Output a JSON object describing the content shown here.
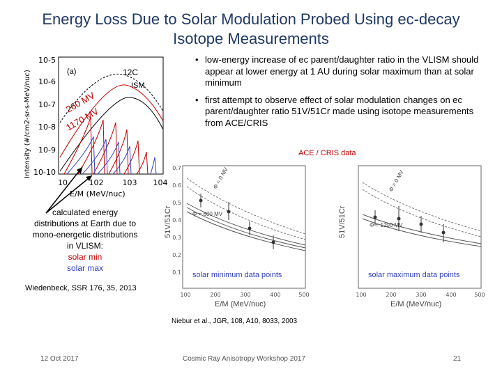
{
  "slide": {
    "title": "Energy Loss Due to Solar Modulation Probed Using ec-decay Isotope Measurements",
    "bullets": [
      "low-energy increase of ec parent/daughter ratio in the VLISM should appear at lower energy at 1 AU during solar maximum than at solar minimum",
      "first attempt to observe effect of solar modulation changes on ec parent/daughter ratio 51V/51Cr made using isotope measurements from ACE/CRIS"
    ],
    "cris_label": "ACE / CRIS data",
    "caption_lines": [
      "calculated energy",
      "distributions at Earth due to",
      "mono-energetic distributions",
      "in VLISM:"
    ],
    "caption_min": "solar min",
    "caption_max": "solar max",
    "ref_left": "Wiedenbeck, SSR 176, 35, 2013",
    "ref_bottom": "Niebur et al., JGR, 108, A10, 8033, 2003",
    "footer_date": "12 Oct 2017",
    "footer_center": "Cosmic Ray Anisotropy Workshop 2017",
    "footer_page": "21"
  },
  "left_plot": {
    "panel_label": "(a)",
    "isotope": "12C",
    "ism_label": "ISM",
    "phi_min": "260 MV",
    "phi_max": "1170 MV",
    "ylabel": "Intensity (#/cm2-sr-s-MeV/nuc)",
    "xlabel": "E/M (MeV/nuc)",
    "yticks": [
      "10-5",
      "10-6",
      "10-7",
      "10-8",
      "10-9",
      "10-10"
    ],
    "xticks": [
      "10",
      "102",
      "103",
      "104"
    ]
  },
  "right_plots": {
    "ylabel": "51V/51Cr",
    "xlabel": "E/M (MeV/nuc)",
    "yticks": [
      "0.7",
      "0.6",
      "0.5",
      "0.4",
      "0.3",
      "0.2",
      "0.1"
    ],
    "xticks": [
      "100",
      "200",
      "300",
      "400",
      "500"
    ],
    "min_curve_labels": [
      "Φ = 0 MV",
      "Φ = 600 MV"
    ],
    "max_curve_labels": [
      "Φ = 0 MV",
      "Φ = 1200 MV"
    ],
    "min_points_label": "solar minimum data points",
    "max_points_label": "solar maximum data points"
  },
  "colors": {
    "title": "#1f3864",
    "red": "#c00000",
    "blue": "#2f3fbf"
  }
}
